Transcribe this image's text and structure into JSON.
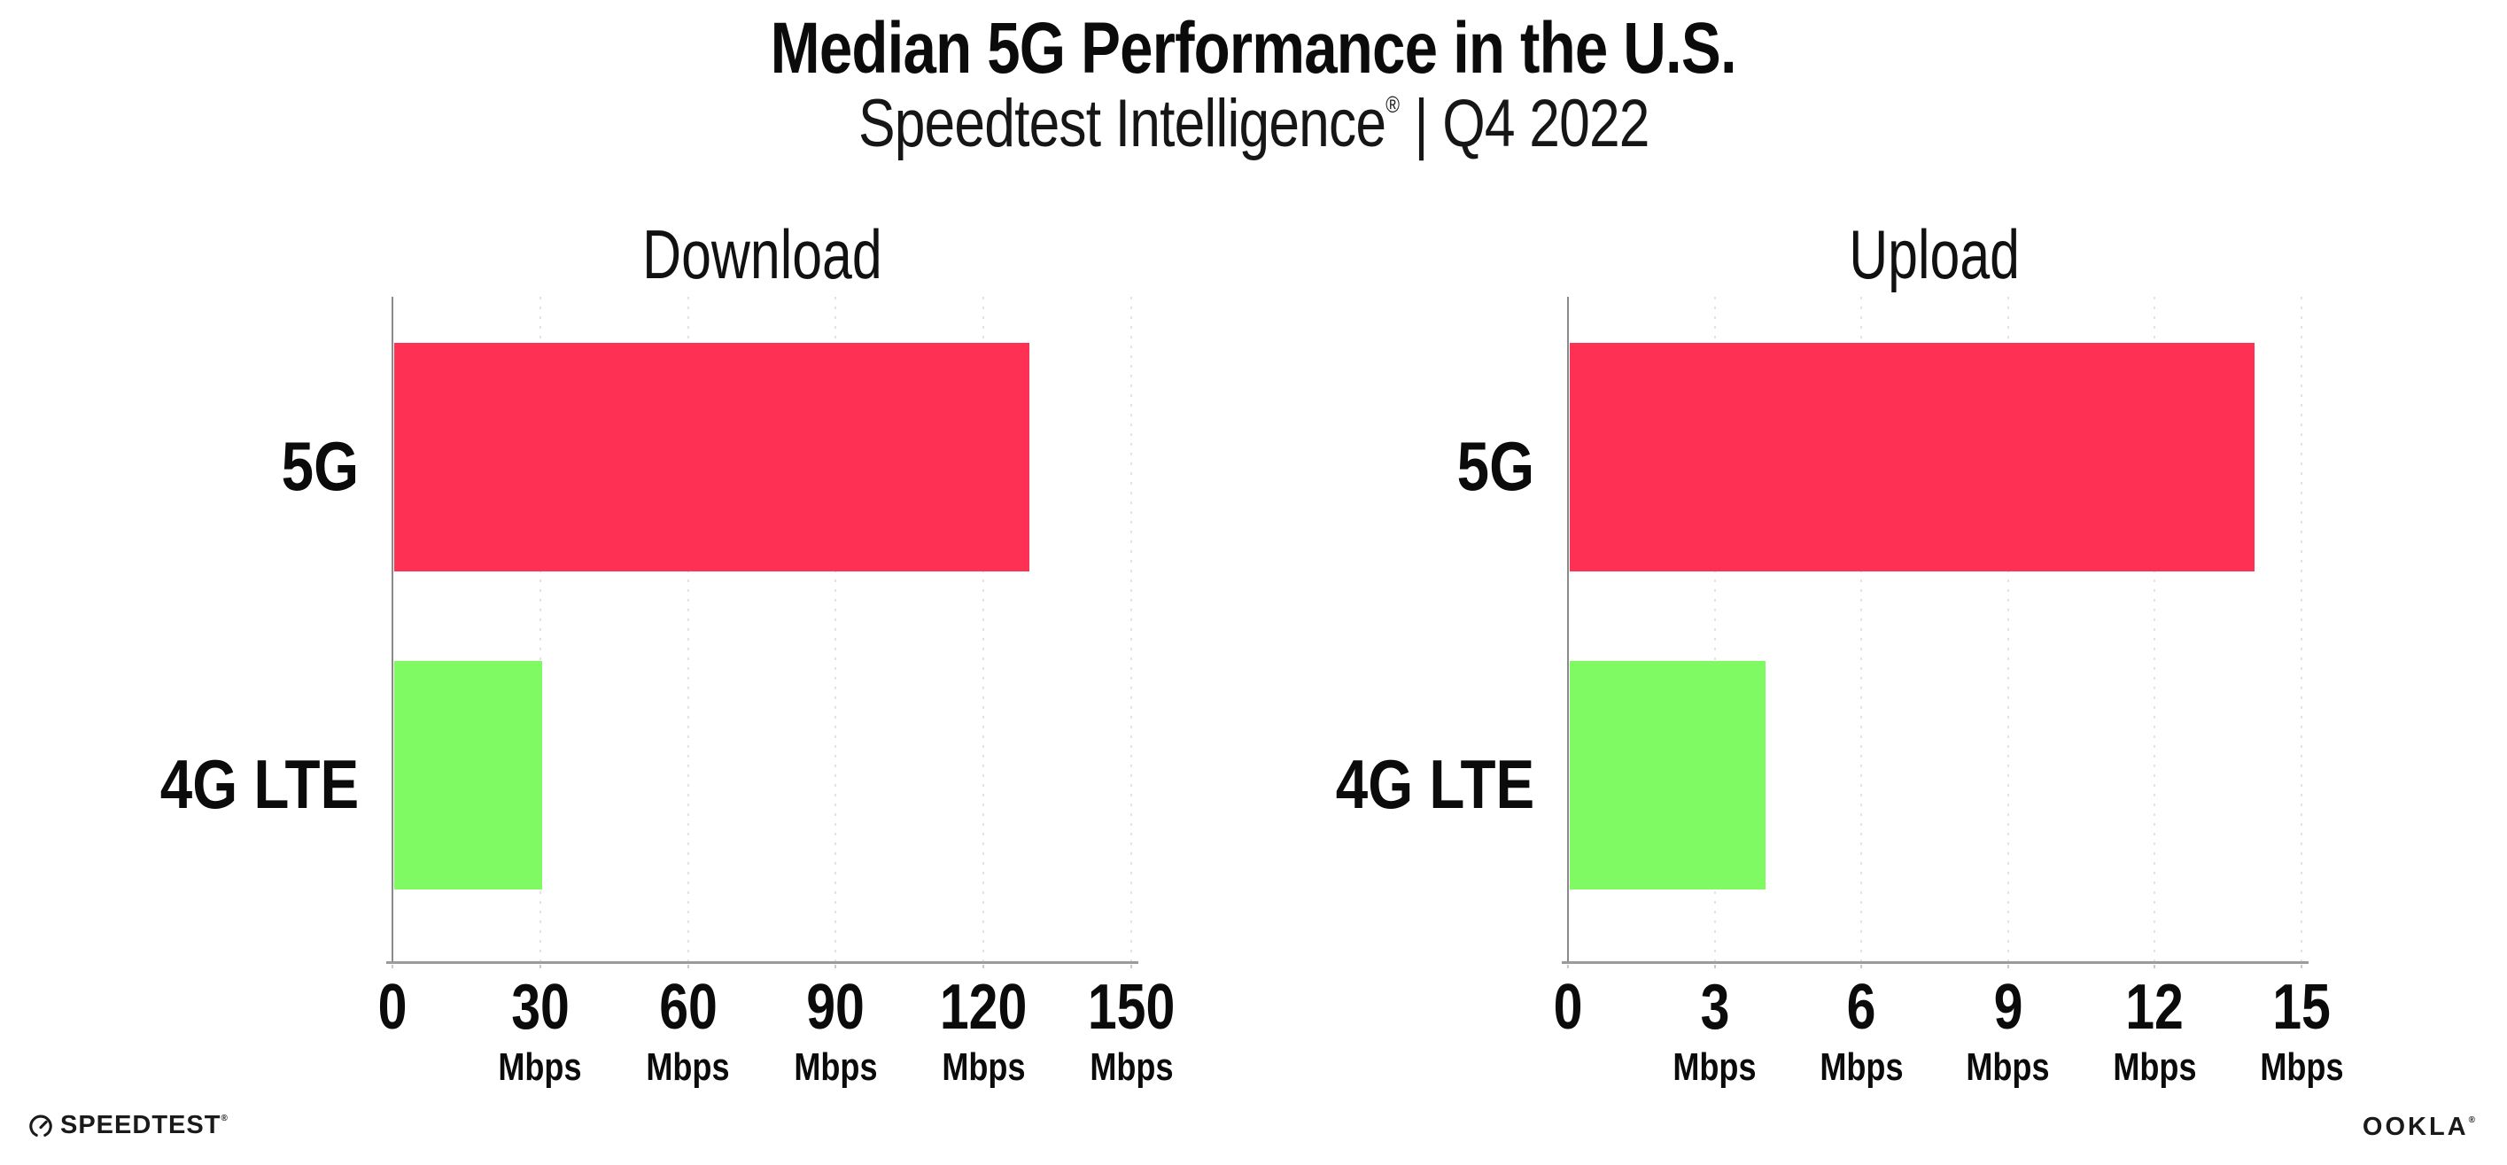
{
  "header": {
    "title": "Median 5G Performance in the U.S.",
    "subtitle_brand": "Speedtest Intelligence",
    "subtitle_reg": "®",
    "subtitle_sep": " | ",
    "subtitle_period": "Q4 2022"
  },
  "colors": {
    "bar_5g": "#fe3155",
    "bar_4g_lte": "#80fa63",
    "axis": "#9b9b9b",
    "gridline": "#e2e2ee",
    "text": "#0b0b0b"
  },
  "chart_data": [
    {
      "type": "bar",
      "orientation": "horizontal",
      "title": "Download",
      "categories": [
        "5G",
        "4G LTE"
      ],
      "values": [
        129,
        30
      ],
      "unit": "Mbps",
      "xlabel": "",
      "ylabel": "",
      "xlim": [
        0,
        150
      ],
      "xticks": [
        0,
        30,
        60,
        90,
        120,
        150
      ],
      "bar_colors": [
        "#fe3155",
        "#80fa63"
      ],
      "grid": "dotted vertical gridlines at each tick",
      "legend": "none"
    },
    {
      "type": "bar",
      "orientation": "horizontal",
      "title": "Upload",
      "categories": [
        "5G",
        "4G LTE"
      ],
      "values": [
        14,
        4
      ],
      "unit": "Mbps",
      "xlabel": "",
      "ylabel": "",
      "xlim": [
        0,
        15
      ],
      "xticks": [
        0,
        3,
        6,
        9,
        12,
        15
      ],
      "bar_colors": [
        "#fe3155",
        "#80fa63"
      ],
      "grid": "dotted vertical gridlines at each tick",
      "legend": "none"
    }
  ],
  "footer": {
    "speedtest_label": "SPEEDTEST",
    "speedtest_reg": "®",
    "ookla_label": "OOKLA",
    "ookla_reg": "®"
  }
}
